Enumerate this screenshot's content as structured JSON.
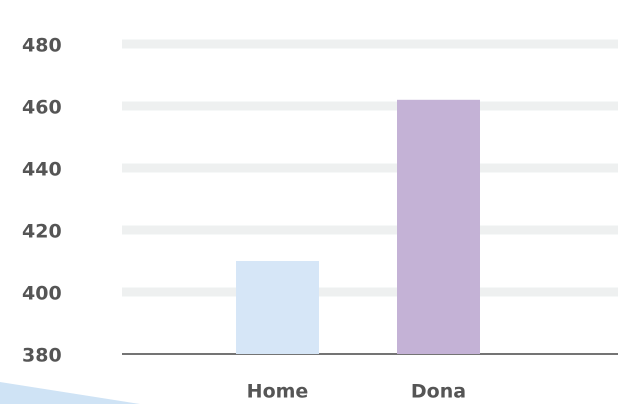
{
  "chart_data": {
    "type": "bar",
    "categories": [
      "Home",
      "Dona"
    ],
    "values": [
      410,
      462
    ],
    "colors": [
      "#d6e6f7",
      "#c4b2d6"
    ],
    "ylim": [
      380,
      480
    ],
    "yticks": [
      380,
      400,
      420,
      440,
      460,
      480
    ],
    "grid": true
  }
}
